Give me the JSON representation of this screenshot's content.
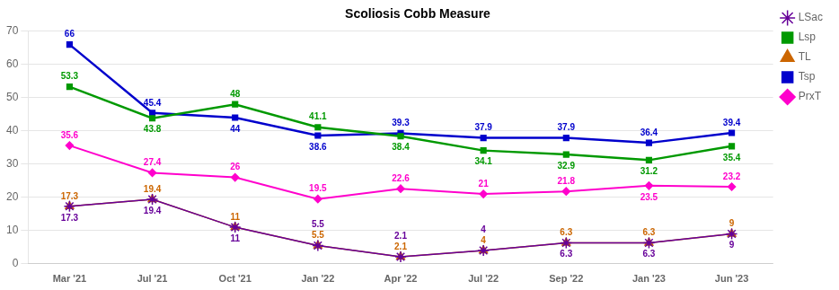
{
  "chart_data": {
    "type": "line",
    "title": "Scoliosis Cobb Measure",
    "categories": [
      "Mar '21",
      "Jul '21",
      "Oct '21",
      "Jan '22",
      "Apr '22",
      "Jul '22",
      "Sep '22",
      "Jan '23",
      "Jun '23"
    ],
    "series": [
      {
        "name": "PrxT",
        "color": "#FF00CC",
        "marker": "diamond",
        "values": [
          35.6,
          27.4,
          26,
          19.5,
          22.6,
          21,
          21.8,
          23.5,
          23.2
        ]
      },
      {
        "name": "Tsp",
        "color": "#0000CC",
        "marker": "square",
        "values": [
          66,
          45.4,
          44,
          38.6,
          39.3,
          37.9,
          37.9,
          36.4,
          39.4
        ]
      },
      {
        "name": "TL",
        "color": "#CC6600",
        "marker": "triangle",
        "values": [
          17.3,
          19.4,
          11,
          5.5,
          2.1,
          4,
          6.3,
          6.3,
          9
        ]
      },
      {
        "name": "Lsp",
        "color": "#009900",
        "marker": "square",
        "values": [
          53.3,
          43.8,
          48,
          41.1,
          38.4,
          34.1,
          32.9,
          31.2,
          35.4
        ]
      },
      {
        "name": "LSac",
        "color": "#660099",
        "marker": "star",
        "values": [
          17.3,
          19.4,
          11,
          5.5,
          2.1,
          4,
          6.3,
          6.3,
          9
        ]
      }
    ],
    "ylim": [
      0,
      70
    ],
    "yticks": [
      0,
      10,
      20,
      30,
      40,
      50,
      60,
      70
    ],
    "grid": true,
    "legend": "upper right",
    "data_labels": true
  }
}
